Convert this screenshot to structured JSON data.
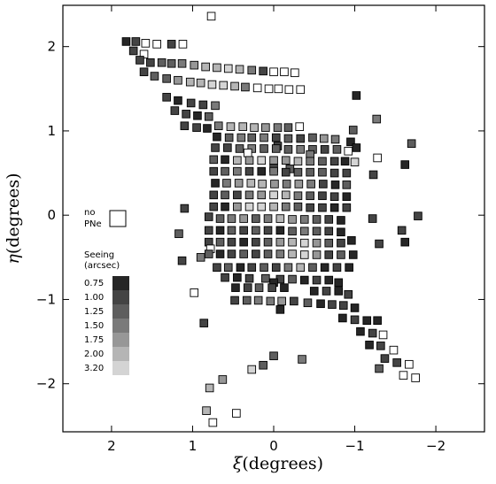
{
  "chart_data": {
    "type": "scatter",
    "xlabel_symbol": "ξ",
    "xlabel_unit": "(degrees)",
    "ylabel_symbol": "η",
    "ylabel_unit": "(degrees)",
    "xlim": [
      2.6,
      -2.6
    ],
    "ylim": [
      -2.57,
      2.49
    ],
    "x_ticks": [
      2,
      1,
      0,
      -1,
      -2
    ],
    "x_tick_labels": [
      "2",
      "1",
      "0",
      "−1",
      "−2"
    ],
    "y_ticks": [
      2,
      1,
      0,
      -1,
      -2
    ],
    "y_tick_labels": [
      "2",
      "1",
      "0",
      "−1",
      "−2"
    ],
    "cell_size": 0.095,
    "legend": {
      "no_pne_lines": [
        "no",
        "PNe"
      ],
      "title_lines": [
        "Seeing",
        "(arcsec)"
      ],
      "levels": [
        {
          "label": "0.75",
          "color": "#262626"
        },
        {
          "label": "1.00",
          "color": "#444444"
        },
        {
          "label": "1.25",
          "color": "#5e5e5e"
        },
        {
          "label": "1.50",
          "color": "#7a7a7a"
        },
        {
          "label": "1.75",
          "color": "#979797"
        },
        {
          "label": "2.00",
          "color": "#b5b5b5"
        },
        {
          "label": "3.20",
          "color": "#d4d4d4"
        }
      ]
    },
    "fields": [
      [
        0.77,
        2.36,
        -1
      ],
      [
        1.82,
        2.06,
        0
      ],
      [
        1.7,
        2.06,
        1
      ],
      [
        1.58,
        2.04,
        -1
      ],
      [
        1.44,
        2.03,
        -1
      ],
      [
        1.26,
        2.03,
        1
      ],
      [
        1.12,
        2.03,
        -1
      ],
      [
        1.73,
        1.95,
        1
      ],
      [
        1.6,
        1.91,
        -1
      ],
      [
        1.65,
        1.84,
        1
      ],
      [
        1.52,
        1.81,
        1
      ],
      [
        1.38,
        1.81,
        2
      ],
      [
        1.26,
        1.8,
        2
      ],
      [
        1.13,
        1.8,
        3
      ],
      [
        0.98,
        1.78,
        4
      ],
      [
        0.84,
        1.76,
        5
      ],
      [
        0.7,
        1.75,
        5
      ],
      [
        0.56,
        1.74,
        6
      ],
      [
        0.42,
        1.73,
        5
      ],
      [
        0.27,
        1.72,
        3
      ],
      [
        0.13,
        1.71,
        1
      ],
      [
        0.0,
        1.7,
        -1
      ],
      [
        -0.13,
        1.7,
        -1
      ],
      [
        -0.26,
        1.69,
        -1
      ],
      [
        1.6,
        1.7,
        1
      ],
      [
        1.47,
        1.65,
        2
      ],
      [
        1.32,
        1.62,
        2
      ],
      [
        1.18,
        1.6,
        4
      ],
      [
        1.03,
        1.58,
        5
      ],
      [
        0.9,
        1.57,
        5
      ],
      [
        0.76,
        1.55,
        6
      ],
      [
        0.62,
        1.54,
        6
      ],
      [
        0.48,
        1.53,
        5
      ],
      [
        0.35,
        1.52,
        3
      ],
      [
        0.2,
        1.51,
        -1
      ],
      [
        0.06,
        1.5,
        -1
      ],
      [
        -0.06,
        1.5,
        -1
      ],
      [
        -0.19,
        1.49,
        -1
      ],
      [
        -0.33,
        1.49,
        -1
      ],
      [
        -1.02,
        1.42,
        0
      ],
      [
        1.32,
        1.4,
        1
      ],
      [
        1.18,
        1.36,
        0
      ],
      [
        1.02,
        1.33,
        1
      ],
      [
        0.87,
        1.31,
        1
      ],
      [
        0.72,
        1.3,
        3
      ],
      [
        1.22,
        1.24,
        1
      ],
      [
        1.08,
        1.2,
        1
      ],
      [
        0.94,
        1.18,
        0
      ],
      [
        0.8,
        1.17,
        2
      ],
      [
        -1.27,
        1.14,
        3
      ],
      [
        1.1,
        1.06,
        1
      ],
      [
        0.95,
        1.04,
        1
      ],
      [
        0.82,
        1.03,
        0
      ],
      [
        0.68,
        1.06,
        3
      ],
      [
        0.53,
        1.05,
        5
      ],
      [
        0.38,
        1.05,
        5
      ],
      [
        0.24,
        1.04,
        5
      ],
      [
        0.1,
        1.04,
        4
      ],
      [
        -0.05,
        1.04,
        3
      ],
      [
        -0.18,
        1.04,
        2
      ],
      [
        -0.32,
        1.05,
        -1
      ],
      [
        -0.98,
        1.01,
        2
      ],
      [
        0.7,
        0.93,
        0
      ],
      [
        0.55,
        0.92,
        2
      ],
      [
        0.4,
        0.92,
        3
      ],
      [
        0.27,
        0.92,
        2
      ],
      [
        0.12,
        0.92,
        3
      ],
      [
        -0.03,
        0.92,
        1
      ],
      [
        -0.18,
        0.91,
        2
      ],
      [
        -0.33,
        0.91,
        1
      ],
      [
        -0.48,
        0.92,
        2
      ],
      [
        -0.62,
        0.91,
        4
      ],
      [
        -0.76,
        0.9,
        3
      ],
      [
        -1.7,
        0.85,
        2
      ],
      [
        -0.95,
        0.87,
        0
      ],
      [
        -0.05,
        0.82,
        1
      ],
      [
        0.72,
        0.8,
        1
      ],
      [
        0.57,
        0.8,
        1
      ],
      [
        0.42,
        0.79,
        2
      ],
      [
        0.27,
        0.79,
        3
      ],
      [
        0.12,
        0.79,
        2
      ],
      [
        -0.03,
        0.79,
        2
      ],
      [
        -0.18,
        0.78,
        2
      ],
      [
        -0.33,
        0.78,
        3
      ],
      [
        -0.48,
        0.78,
        2
      ],
      [
        -0.63,
        0.78,
        1
      ],
      [
        -0.78,
        0.78,
        2
      ],
      [
        -0.92,
        0.76,
        -1
      ],
      [
        -1.02,
        0.8,
        0
      ],
      [
        0.32,
        0.74,
        -1
      ],
      [
        -0.45,
        0.72,
        3
      ],
      [
        0.74,
        0.66,
        2
      ],
      [
        0.6,
        0.66,
        0
      ],
      [
        0.45,
        0.65,
        5
      ],
      [
        0.3,
        0.65,
        4
      ],
      [
        0.15,
        0.65,
        6
      ],
      [
        0.0,
        0.65,
        4
      ],
      [
        -0.15,
        0.65,
        4
      ],
      [
        -0.3,
        0.64,
        5
      ],
      [
        -0.45,
        0.64,
        3
      ],
      [
        -0.6,
        0.64,
        2
      ],
      [
        -0.75,
        0.64,
        1
      ],
      [
        -0.88,
        0.64,
        0
      ],
      [
        -1.0,
        0.63,
        6
      ],
      [
        -1.28,
        0.68,
        -1
      ],
      [
        -1.62,
        0.6,
        0
      ],
      [
        0.0,
        0.56,
        1
      ],
      [
        -0.2,
        0.55,
        2
      ],
      [
        0.74,
        0.52,
        1
      ],
      [
        0.6,
        0.52,
        2
      ],
      [
        0.45,
        0.52,
        3
      ],
      [
        0.3,
        0.52,
        1
      ],
      [
        0.15,
        0.52,
        0
      ],
      [
        0.0,
        0.52,
        3
      ],
      [
        -0.15,
        0.51,
        1
      ],
      [
        -0.3,
        0.51,
        2
      ],
      [
        -0.45,
        0.51,
        2
      ],
      [
        -0.6,
        0.51,
        2
      ],
      [
        -0.75,
        0.5,
        1
      ],
      [
        -0.9,
        0.5,
        1
      ],
      [
        -1.23,
        0.48,
        1
      ],
      [
        0.72,
        0.38,
        0
      ],
      [
        0.58,
        0.38,
        3
      ],
      [
        0.43,
        0.38,
        4
      ],
      [
        0.28,
        0.38,
        5
      ],
      [
        0.14,
        0.37,
        5
      ],
      [
        -0.01,
        0.37,
        4
      ],
      [
        -0.16,
        0.37,
        3
      ],
      [
        -0.31,
        0.37,
        4
      ],
      [
        -0.46,
        0.37,
        3
      ],
      [
        -0.61,
        0.37,
        1
      ],
      [
        -0.76,
        0.36,
        0
      ],
      [
        -0.9,
        0.36,
        2
      ],
      [
        0.74,
        0.24,
        1
      ],
      [
        0.6,
        0.24,
        2
      ],
      [
        0.45,
        0.24,
        1
      ],
      [
        0.3,
        0.24,
        3
      ],
      [
        0.15,
        0.24,
        4
      ],
      [
        0.0,
        0.24,
        6
      ],
      [
        -0.15,
        0.24,
        5
      ],
      [
        -0.3,
        0.23,
        3
      ],
      [
        -0.45,
        0.23,
        2
      ],
      [
        -0.6,
        0.23,
        1
      ],
      [
        -0.75,
        0.22,
        1
      ],
      [
        -0.9,
        0.22,
        0
      ],
      [
        1.1,
        0.08,
        1
      ],
      [
        0.74,
        0.1,
        1
      ],
      [
        0.6,
        0.1,
        0
      ],
      [
        0.45,
        0.1,
        4
      ],
      [
        0.3,
        0.1,
        6
      ],
      [
        0.15,
        0.1,
        6
      ],
      [
        0.0,
        0.1,
        5
      ],
      [
        -0.15,
        0.1,
        3
      ],
      [
        -0.3,
        0.1,
        2
      ],
      [
        -0.45,
        0.09,
        1
      ],
      [
        -0.6,
        0.09,
        1
      ],
      [
        -0.75,
        0.09,
        0
      ],
      [
        -0.9,
        0.09,
        1
      ],
      [
        0.8,
        -0.02,
        1
      ],
      [
        0.66,
        -0.04,
        2
      ],
      [
        0.52,
        -0.04,
        3
      ],
      [
        0.37,
        -0.04,
        4
      ],
      [
        0.22,
        -0.04,
        2
      ],
      [
        0.07,
        -0.04,
        3
      ],
      [
        -0.08,
        -0.04,
        5
      ],
      [
        -0.23,
        -0.05,
        4
      ],
      [
        -0.38,
        -0.05,
        3
      ],
      [
        -0.53,
        -0.05,
        2
      ],
      [
        -0.68,
        -0.05,
        1
      ],
      [
        -0.83,
        -0.06,
        0
      ],
      [
        -1.22,
        -0.04,
        1
      ],
      [
        -1.78,
        -0.01,
        1
      ],
      [
        1.17,
        -0.22,
        2
      ],
      [
        0.8,
        -0.18,
        1
      ],
      [
        0.66,
        -0.18,
        0
      ],
      [
        0.52,
        -0.18,
        2
      ],
      [
        0.37,
        -0.18,
        1
      ],
      [
        0.22,
        -0.18,
        2
      ],
      [
        0.07,
        -0.18,
        1
      ],
      [
        -0.08,
        -0.18,
        0
      ],
      [
        -0.23,
        -0.19,
        2
      ],
      [
        -0.38,
        -0.19,
        3
      ],
      [
        -0.53,
        -0.19,
        2
      ],
      [
        -0.68,
        -0.19,
        1
      ],
      [
        -0.83,
        -0.2,
        0
      ],
      [
        -1.58,
        -0.18,
        1
      ],
      [
        0.8,
        -0.32,
        1
      ],
      [
        0.66,
        -0.32,
        2
      ],
      [
        0.52,
        -0.32,
        1
      ],
      [
        0.37,
        -0.32,
        0
      ],
      [
        0.22,
        -0.32,
        1
      ],
      [
        0.07,
        -0.32,
        2
      ],
      [
        -0.08,
        -0.32,
        4
      ],
      [
        -0.23,
        -0.32,
        5
      ],
      [
        -0.38,
        -0.33,
        6
      ],
      [
        -0.53,
        -0.33,
        4
      ],
      [
        -0.68,
        -0.33,
        2
      ],
      [
        -0.83,
        -0.33,
        1
      ],
      [
        -0.96,
        -0.3,
        0
      ],
      [
        -1.3,
        -0.34,
        1
      ],
      [
        -1.62,
        -0.32,
        0
      ],
      [
        0.78,
        -0.4,
        -1
      ],
      [
        0.9,
        -0.5,
        3
      ],
      [
        0.8,
        -0.46,
        2
      ],
      [
        0.66,
        -0.46,
        0
      ],
      [
        0.52,
        -0.46,
        1
      ],
      [
        0.37,
        -0.46,
        2
      ],
      [
        0.22,
        -0.46,
        1
      ],
      [
        0.07,
        -0.46,
        2
      ],
      [
        -0.08,
        -0.46,
        3
      ],
      [
        -0.23,
        -0.46,
        5
      ],
      [
        -0.38,
        -0.47,
        6
      ],
      [
        -0.53,
        -0.47,
        4
      ],
      [
        -0.68,
        -0.47,
        1
      ],
      [
        -0.83,
        -0.47,
        2
      ],
      [
        -0.98,
        -0.47,
        0
      ],
      [
        1.13,
        -0.54,
        1
      ],
      [
        0.7,
        -0.62,
        1
      ],
      [
        0.56,
        -0.62,
        2
      ],
      [
        0.41,
        -0.62,
        0
      ],
      [
        0.27,
        -0.62,
        1
      ],
      [
        0.12,
        -0.62,
        2
      ],
      [
        -0.03,
        -0.62,
        1
      ],
      [
        -0.18,
        -0.62,
        3
      ],
      [
        -0.33,
        -0.62,
        5
      ],
      [
        -0.48,
        -0.62,
        2
      ],
      [
        -0.63,
        -0.62,
        0
      ],
      [
        -0.78,
        -0.62,
        1
      ],
      [
        -0.93,
        -0.62,
        0
      ],
      [
        0.6,
        -0.74,
        1
      ],
      [
        0.45,
        -0.74,
        0
      ],
      [
        0.3,
        -0.75,
        1
      ],
      [
        0.1,
        -0.75,
        2
      ],
      [
        -0.08,
        -0.76,
        1
      ],
      [
        -0.23,
        -0.76,
        2
      ],
      [
        -0.38,
        -0.77,
        0
      ],
      [
        -0.53,
        -0.77,
        1
      ],
      [
        -0.68,
        -0.77,
        0
      ],
      [
        -0.8,
        -0.8,
        0
      ],
      [
        0.0,
        -0.8,
        0
      ],
      [
        0.98,
        -0.92,
        -1
      ],
      [
        0.47,
        -0.86,
        0
      ],
      [
        0.32,
        -0.86,
        1
      ],
      [
        0.18,
        -0.86,
        2
      ],
      [
        0.02,
        -0.86,
        1
      ],
      [
        -0.13,
        -0.86,
        0
      ],
      [
        -0.5,
        -0.9,
        0
      ],
      [
        -0.65,
        -0.9,
        1
      ],
      [
        -0.8,
        -0.9,
        0
      ],
      [
        -0.92,
        -0.94,
        1
      ],
      [
        0.48,
        -1.01,
        1
      ],
      [
        0.33,
        -1.01,
        2
      ],
      [
        0.19,
        -1.01,
        3
      ],
      [
        0.04,
        -1.02,
        3
      ],
      [
        -0.1,
        -1.02,
        4
      ],
      [
        -0.25,
        -1.02,
        1
      ],
      [
        -0.42,
        -1.04,
        2
      ],
      [
        -0.58,
        -1.05,
        0
      ],
      [
        -0.72,
        -1.06,
        1
      ],
      [
        -0.86,
        -1.07,
        1
      ],
      [
        -1.0,
        -1.1,
        0
      ],
      [
        0.86,
        -1.28,
        1
      ],
      [
        -0.08,
        -1.12,
        0
      ],
      [
        -0.85,
        -1.22,
        0
      ],
      [
        -1.0,
        -1.24,
        1
      ],
      [
        -1.15,
        -1.25,
        0
      ],
      [
        -1.28,
        -1.25,
        0
      ],
      [
        -1.07,
        -1.38,
        0
      ],
      [
        -1.22,
        -1.4,
        1
      ],
      [
        -1.35,
        -1.42,
        -1
      ],
      [
        -1.18,
        -1.54,
        0
      ],
      [
        -1.32,
        -1.55,
        1
      ],
      [
        -1.48,
        -1.6,
        -1
      ],
      [
        -1.37,
        -1.7,
        1
      ],
      [
        -1.52,
        -1.75,
        1
      ],
      [
        -1.67,
        -1.77,
        -1
      ],
      [
        -1.3,
        -1.82,
        2
      ],
      [
        -1.6,
        -1.9,
        -1
      ],
      [
        -1.75,
        -1.93,
        -1
      ],
      [
        0.0,
        -1.67,
        2
      ],
      [
        -0.35,
        -1.71,
        3
      ],
      [
        0.13,
        -1.78,
        2
      ],
      [
        0.27,
        -1.83,
        6
      ],
      [
        0.63,
        -1.95,
        4
      ],
      [
        0.79,
        -2.05,
        5
      ],
      [
        0.83,
        -2.32,
        5
      ],
      [
        0.75,
        -2.46,
        -1
      ],
      [
        0.46,
        -2.35,
        -1
      ]
    ]
  }
}
